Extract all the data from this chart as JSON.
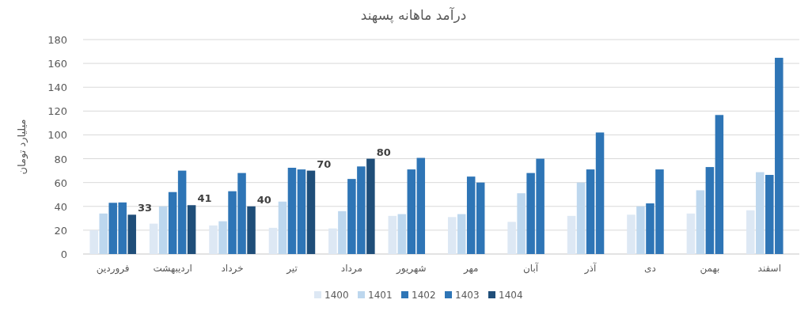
{
  "chart_data": {
    "type": "bar",
    "title": "درآمد ماهانه پسهند",
    "ylabel": "میلیارد تومان",
    "categories": [
      "فروردین",
      "اردیبهشت",
      "خرداد",
      "تیر",
      "مرداد",
      "شهریور",
      "مهر",
      "آبان",
      "آذر",
      "دی",
      "بهمن",
      "اسفند"
    ],
    "series": [
      {
        "name": "1400",
        "color": "#dde8f4",
        "values": [
          20,
          25.5,
          24,
          22,
          21.5,
          32,
          31,
          27,
          32,
          33,
          34,
          36.7
        ]
      },
      {
        "name": "1401",
        "color": "#bdd7ee",
        "values": [
          34,
          40,
          27.5,
          44,
          36,
          33.5,
          33.5,
          51,
          60,
          40,
          53.5,
          68.7
        ]
      },
      {
        "name": "1402",
        "color": "#2e75b6",
        "values": [
          43,
          52,
          52.7,
          72.4,
          63,
          71,
          65,
          68,
          71,
          42.5,
          73,
          66.4
        ]
      },
      {
        "name": "1403",
        "color": "#2e75b6",
        "values": [
          43.3,
          70,
          68,
          71,
          73.5,
          80.7,
          60,
          80,
          102,
          71,
          116.7,
          164.7
        ]
      },
      {
        "name": "1404",
        "color": "#1f4e79",
        "values": [
          33,
          41,
          40,
          70,
          80,
          null,
          null,
          null,
          null,
          null,
          null,
          null
        ],
        "value_labels": [
          "33",
          "41",
          "40",
          "70",
          "80",
          null,
          null,
          null,
          null,
          null,
          null,
          null
        ]
      }
    ],
    "ylim": [
      0,
      180
    ],
    "yticks": [
      0,
      20,
      40,
      60,
      80,
      100,
      120,
      140,
      160,
      180
    ],
    "grid": "y",
    "legend": "bottom"
  }
}
